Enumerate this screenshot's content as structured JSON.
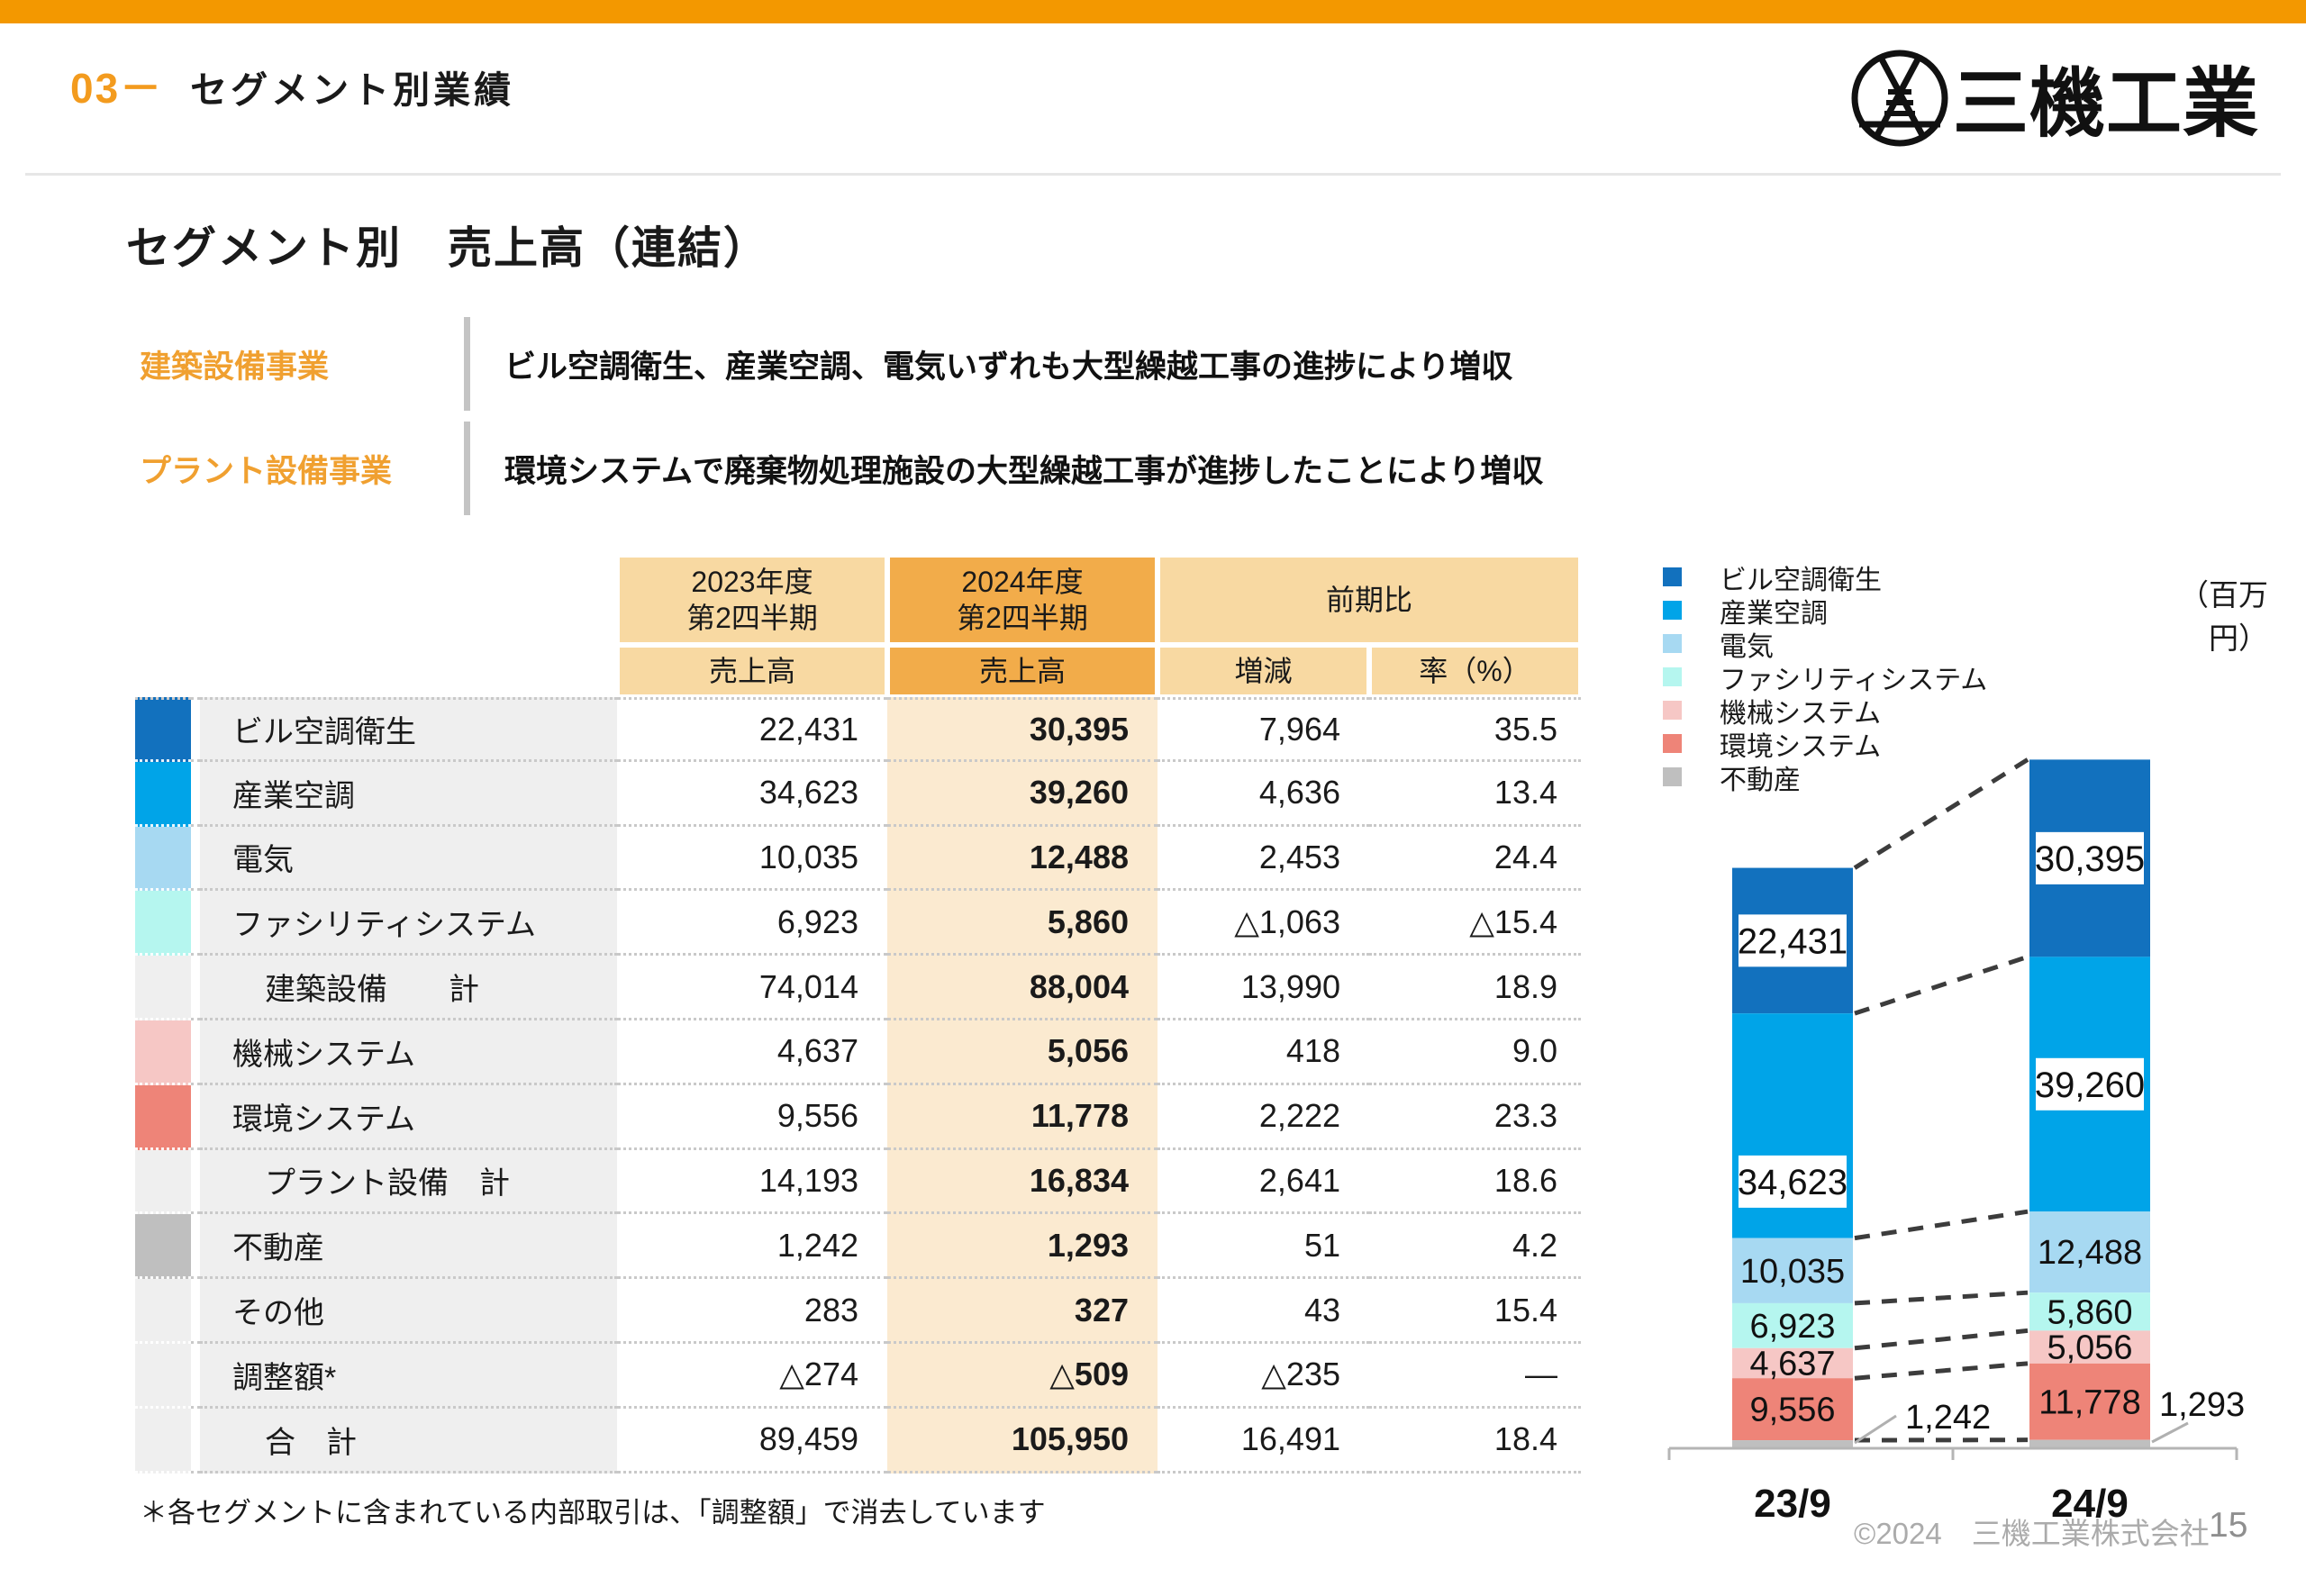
{
  "colors": {
    "accent_orange": "#F39800",
    "header_cell_light": "#F8D9A2",
    "header_cell_dark": "#F2AC4A",
    "col2024_tint": "#FBEAD0",
    "label_col_gray": "#EFEFEF",
    "bldg_hvac": "#1271BE",
    "industrial_hvac": "#00A4E8",
    "electric": "#A7D9F2",
    "facility": "#B5F6EF",
    "machinery": "#F6C7C5",
    "environment": "#EE8478",
    "real_estate": "#BFBFBF"
  },
  "header": {
    "section_no": "03－",
    "section_title": "セグメント別業績",
    "logo_text": "三機工業"
  },
  "slide": {
    "title": "セグメント別　売上高（連結）"
  },
  "highlights": [
    {
      "label": "建築設備事業",
      "text": "ビル空調衛生、産業空調、電気いずれも大型繰越工事の進捗により増収"
    },
    {
      "label": "プラント設備事業",
      "text": "環境システムで廃棄物処理施設の大型繰越工事が進捗したことにより増収"
    }
  ],
  "table": {
    "col_groups": {
      "fy2023_line1": "2023年度",
      "fy2023_line2": "第2四半期",
      "fy2024_line1": "2024年度",
      "fy2024_line2": "第2四半期",
      "yoy": "前期比"
    },
    "sub_headers": {
      "sales2023": "売上高",
      "sales2024": "売上高",
      "diff": "増減",
      "rate": "率（%）"
    },
    "rows": [
      {
        "label": "ビル空調衛生",
        "type": "segment",
        "color": "#1271BE",
        "y2023": "22,431",
        "y2024": "30,395",
        "diff": "7,964",
        "rate": "35.5"
      },
      {
        "label": "産業空調",
        "type": "segment",
        "color": "#00A4E8",
        "y2023": "34,623",
        "y2024": "39,260",
        "diff": "4,636",
        "rate": "13.4"
      },
      {
        "label": "電気",
        "type": "segment",
        "color": "#A7D9F2",
        "y2023": "10,035",
        "y2024": "12,488",
        "diff": "2,453",
        "rate": "24.4"
      },
      {
        "label": "ファシリティシステム",
        "type": "segment",
        "color": "#B5F6EF",
        "y2023": "6,923",
        "y2024": "5,860",
        "diff": "△1,063",
        "rate": "△15.4"
      },
      {
        "label": "建築設備　　計",
        "type": "subtotal",
        "color": null,
        "y2023": "74,014",
        "y2024": "88,004",
        "diff": "13,990",
        "rate": "18.9"
      },
      {
        "label": "機械システム",
        "type": "segment",
        "color": "#F6C7C5",
        "y2023": "4,637",
        "y2024": "5,056",
        "diff": "418",
        "rate": "9.0"
      },
      {
        "label": "環境システム",
        "type": "segment",
        "color": "#EE8478",
        "y2023": "9,556",
        "y2024": "11,778",
        "diff": "2,222",
        "rate": "23.3"
      },
      {
        "label": "プラント設備　計",
        "type": "subtotal",
        "color": null,
        "y2023": "14,193",
        "y2024": "16,834",
        "diff": "2,641",
        "rate": "18.6"
      },
      {
        "label": "不動産",
        "type": "segment",
        "color": "#BFBFBF",
        "y2023": "1,242",
        "y2024": "1,293",
        "diff": "51",
        "rate": "4.2"
      },
      {
        "label": "その他",
        "type": "other",
        "color": null,
        "y2023": "283",
        "y2024": "327",
        "diff": "43",
        "rate": "15.4"
      },
      {
        "label": "調整額*",
        "type": "other",
        "color": null,
        "y2023": "△274",
        "y2024": "△509",
        "diff": "△235",
        "rate": "—"
      },
      {
        "label": "合　計",
        "type": "total",
        "color": null,
        "y2023": "89,459",
        "y2024": "105,950",
        "diff": "16,491",
        "rate": "18.4"
      }
    ],
    "footnote": "＊各セグメントに含まれている内部取引は、「調整額」で消去しています"
  },
  "chart_data": {
    "type": "bar",
    "stacked": true,
    "stack_order": "first-series-on-top",
    "unit_label": "（百万円）",
    "legend_position": "top-left",
    "categories": [
      "23/9",
      "24/9"
    ],
    "series": [
      {
        "name": "ビル空調衛生",
        "color": "#1271BE",
        "values": [
          22431,
          30395
        ]
      },
      {
        "name": "産業空調",
        "color": "#00A4E8",
        "values": [
          34623,
          39260
        ]
      },
      {
        "name": "電気",
        "color": "#A7D9F2",
        "values": [
          10035,
          12488
        ]
      },
      {
        "name": "ファシリティシステム",
        "color": "#B5F6EF",
        "values": [
          6923,
          5860
        ]
      },
      {
        "name": "機械システム",
        "color": "#F6C7C5",
        "values": [
          4637,
          5056
        ]
      },
      {
        "name": "環境システム",
        "color": "#EE8478",
        "values": [
          9556,
          11778
        ]
      },
      {
        "name": "不動産",
        "color": "#BFBFBF",
        "values": [
          1242,
          1293
        ]
      }
    ]
  },
  "footer": {
    "copyright": "©2024　三機工業株式会社",
    "page": "15"
  }
}
